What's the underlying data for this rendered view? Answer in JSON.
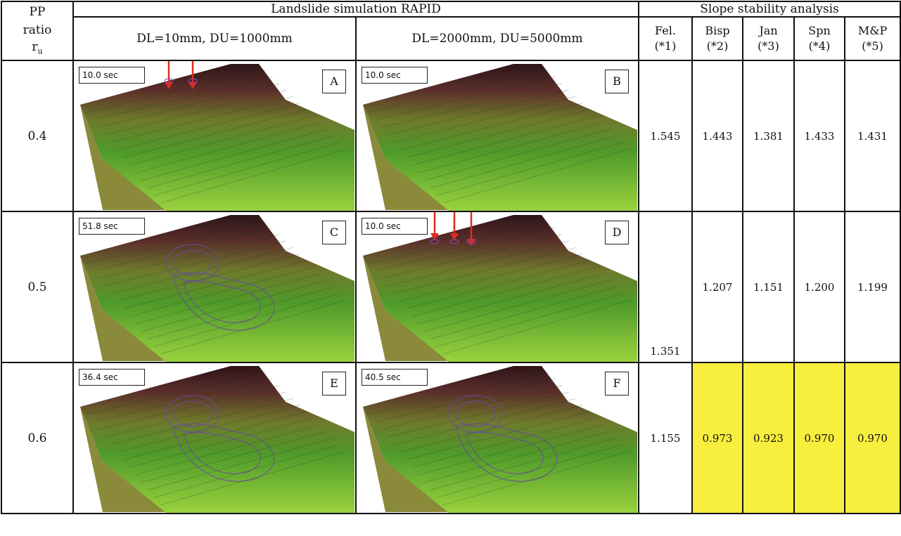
{
  "header": {
    "pp": "PP",
    "ratio": "ratio",
    "r": "r",
    "u": "u",
    "simulation": "Landslide simulation RAPID",
    "stability": "Slope stability analysis",
    "case1": "DL=10mm, DU=1000mm",
    "case2": "DL=2000mm, DU=5000mm",
    "methods": [
      [
        "Fel.",
        "(*1)"
      ],
      [
        "Bisp",
        "(*2)"
      ],
      [
        "Jan",
        "(*3)"
      ],
      [
        "Spn",
        "(*4)"
      ],
      [
        "M&P",
        "(*5)"
      ]
    ]
  },
  "rows": [
    {
      "ru": "0.4",
      "panels": [
        {
          "time": "10.0 sec",
          "letter": "A"
        },
        {
          "time": "10.0 sec",
          "letter": "B"
        }
      ],
      "values": [
        "1.545",
        "1.443",
        "1.381",
        "1.433",
        "1.431"
      ]
    },
    {
      "ru": "0.5",
      "panels": [
        {
          "time": "51.8 sec",
          "letter": "C"
        },
        {
          "time": "10.0 sec",
          "letter": "D"
        }
      ],
      "values": [
        "1.351",
        "1.207",
        "1.151",
        "1.200",
        "1.199"
      ]
    },
    {
      "ru": "0.6",
      "panels": [
        {
          "time": "36.4 sec",
          "letter": "E"
        },
        {
          "time": "40.5 sec",
          "letter": "F"
        }
      ],
      "values": [
        "1.155",
        "0.973",
        "0.923",
        "0.970",
        "0.970"
      ]
    }
  ]
}
